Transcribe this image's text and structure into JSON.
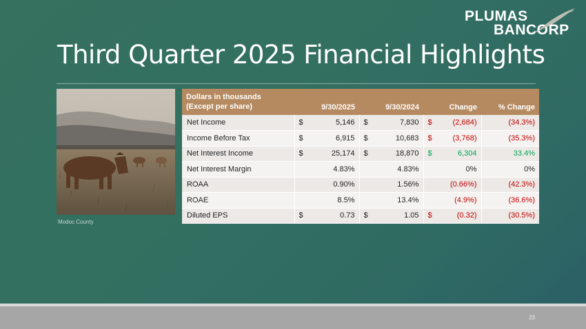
{
  "logo": {
    "line1": "PLUMAS",
    "line2": "BANCORP"
  },
  "title": "Third Quarter 2025 Financial Highlights",
  "photo_caption": "Modoc County",
  "table": {
    "header": {
      "label_line1": "Dollars in thousands",
      "label_line2": "(Except per share)",
      "col1": "9/30/2025",
      "col2": "9/30/2024",
      "col3": "Change",
      "col4": "% Change"
    },
    "rows": [
      {
        "label": "Net Income",
        "c1_cur": "$",
        "c1": "5,146",
        "c2_cur": "$",
        "c2": "7,830",
        "c3_cur": "$",
        "c3": "(2,684)",
        "c4": "(34.3%)",
        "sign": "neg"
      },
      {
        "label": "Income Before Tax",
        "c1_cur": "$",
        "c1": "6,915",
        "c2_cur": "$",
        "c2": "10,683",
        "c3_cur": "$",
        "c3": "(3,768)",
        "c4": "(35.3%)",
        "sign": "neg"
      },
      {
        "label": "Net Interest Income",
        "c1_cur": "$",
        "c1": "25,174",
        "c2_cur": "$",
        "c2": "18,870",
        "c3_cur": "$",
        "c3": "6,304",
        "c4": "33.4%",
        "sign": "pos"
      },
      {
        "label": "Net Interest Margin",
        "c1_cur": "",
        "c1": "4.83%",
        "c2_cur": "",
        "c2": "4.83%",
        "c3_cur": "",
        "c3": "0%",
        "c4": "0%",
        "sign": "zero"
      },
      {
        "label": "ROAA",
        "c1_cur": "",
        "c1": "0.90%",
        "c2_cur": "",
        "c2": "1.56%",
        "c3_cur": "",
        "c3": "(0.66%)",
        "c4": "(42.3%)",
        "sign": "neg"
      },
      {
        "label": "ROAE",
        "c1_cur": "",
        "c1": "8.5%",
        "c2_cur": "",
        "c2": "13.4%",
        "c3_cur": "",
        "c3": "(4.9%)",
        "c4": "(36.6%)",
        "sign": "neg"
      },
      {
        "label": "Diluted EPS",
        "c1_cur": "$",
        "c1": "0.73",
        "c2_cur": "$",
        "c2": "1.05",
        "c3_cur": "$",
        "c3": "(0.32)",
        "c4": "(30.5%)",
        "sign": "neg"
      }
    ]
  },
  "page_number": "23",
  "colors": {
    "header": "#b58a61",
    "negative": "#c00000",
    "positive": "#00a650",
    "background": "#337060"
  }
}
